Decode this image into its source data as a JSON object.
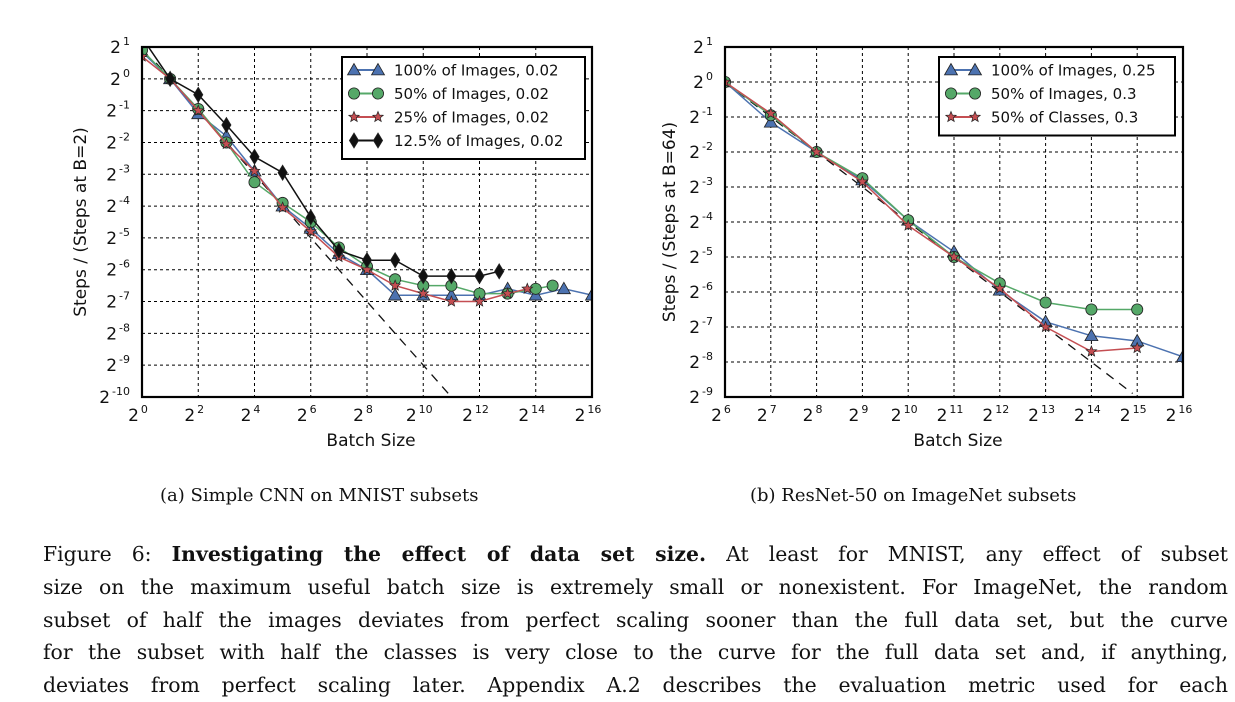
{
  "chart_data": [
    {
      "type": "line",
      "id": "a",
      "subcaption": "(a) Simple CNN on MNIST subsets",
      "xlabel": "Batch Size",
      "ylabel": "Steps / (Steps at B=2)",
      "x_scale": "log2",
      "y_scale": "log2",
      "xlim_exp": [
        0,
        16
      ],
      "ylim_exp": [
        -10,
        1
      ],
      "x_ticks_exp": [
        0,
        2,
        4,
        6,
        8,
        10,
        12,
        14,
        16
      ],
      "y_ticks_exp": [
        1,
        0,
        -1,
        -2,
        -3,
        -4,
        -5,
        -6,
        -7,
        -8,
        -9,
        -10
      ],
      "grid": true,
      "legend_position": "top-right",
      "series": [
        {
          "name": "100% of Images, 0.02",
          "color": "#4C72B0",
          "marker": "triangle",
          "x_exp": [
            0,
            1,
            2,
            3,
            4,
            5,
            6,
            7,
            8,
            9,
            10,
            11,
            12,
            13,
            14,
            15,
            16
          ],
          "y_exp": [
            0.85,
            0,
            -1.1,
            -1.8,
            -2.9,
            -4.0,
            -4.7,
            -5.5,
            -6.0,
            -6.8,
            -6.8,
            -6.8,
            -6.8,
            -6.6,
            -6.8,
            -6.6,
            -6.8
          ]
        },
        {
          "name": "50% of Images, 0.02",
          "color": "#55A868",
          "marker": "circle",
          "x_exp": [
            0,
            1,
            2,
            3,
            4,
            5,
            6,
            7,
            8,
            9,
            10,
            11,
            12,
            13,
            14,
            14.6
          ],
          "y_exp": [
            0.9,
            0,
            -0.95,
            -2.0,
            -3.25,
            -3.9,
            -4.5,
            -5.3,
            -5.9,
            -6.3,
            -6.5,
            -6.5,
            -6.75,
            -6.75,
            -6.6,
            -6.5
          ]
        },
        {
          "name": "25% of Images, 0.02",
          "color": "#C44E52",
          "marker": "star",
          "x_exp": [
            0,
            1,
            2,
            3,
            4,
            5,
            6,
            7,
            8,
            9,
            10,
            11,
            12,
            13,
            13.7
          ],
          "y_exp": [
            0.7,
            0,
            -1.0,
            -2.05,
            -2.9,
            -4.05,
            -4.8,
            -5.6,
            -6.0,
            -6.5,
            -6.75,
            -7.0,
            -7.0,
            -6.75,
            -6.6
          ]
        },
        {
          "name": "12.5% of Images, 0.02",
          "color": "#111111",
          "marker": "diamond",
          "x_exp": [
            0,
            1,
            2,
            3,
            4,
            5,
            6,
            7,
            8,
            9,
            10,
            11,
            12,
            12.7
          ],
          "y_exp": [
            1.3,
            0,
            -0.5,
            -1.45,
            -2.45,
            -2.95,
            -4.35,
            -5.4,
            -5.7,
            -5.7,
            -6.2,
            -6.2,
            -6.2,
            -6.05
          ]
        }
      ],
      "reference_line": {
        "style": "dashed",
        "color": "#111111",
        "x_exp": [
          0.5,
          11.1
        ],
        "y_exp": [
          0.5,
          -10.1
        ]
      }
    },
    {
      "type": "line",
      "id": "b",
      "subcaption": "(b) ResNet-50 on ImageNet subsets",
      "xlabel": "Batch Size",
      "ylabel": "Steps / (Steps at B=64)",
      "x_scale": "log2",
      "y_scale": "log2",
      "xlim_exp": [
        6,
        16
      ],
      "ylim_exp": [
        -9,
        1
      ],
      "x_ticks_exp": [
        6,
        7,
        8,
        9,
        10,
        11,
        12,
        13,
        14,
        15,
        16
      ],
      "y_ticks_exp": [
        1,
        0,
        -1,
        -2,
        -3,
        -4,
        -5,
        -6,
        -7,
        -8,
        -9
      ],
      "grid": true,
      "legend_position": "top-right",
      "series": [
        {
          "name": "100% of Images, 0.25",
          "color": "#4C72B0",
          "marker": "triangle",
          "x_exp": [
            6,
            7,
            8,
            9,
            10,
            11,
            12,
            13,
            14,
            15,
            16
          ],
          "y_exp": [
            0,
            -1.15,
            -2.0,
            -2.8,
            -3.95,
            -4.85,
            -5.95,
            -6.85,
            -7.25,
            -7.4,
            -7.85
          ]
        },
        {
          "name": "50% of Images, 0.3",
          "color": "#55A868",
          "marker": "circle",
          "x_exp": [
            6,
            7,
            8,
            9,
            10,
            11,
            12,
            13,
            14,
            15
          ],
          "y_exp": [
            0,
            -0.95,
            -2.0,
            -2.75,
            -3.95,
            -5.0,
            -5.75,
            -6.3,
            -6.5,
            -6.5
          ]
        },
        {
          "name": "50% of Classes, 0.3",
          "color": "#C44E52",
          "marker": "star",
          "x_exp": [
            6,
            7,
            8,
            9,
            10,
            11,
            12,
            13,
            14,
            15
          ],
          "y_exp": [
            0,
            -0.9,
            -2.0,
            -2.85,
            -4.1,
            -5.0,
            -5.9,
            -7.0,
            -7.7,
            -7.6
          ]
        }
      ],
      "reference_line": {
        "style": "dashed",
        "color": "#111111",
        "x_exp": [
          6,
          14.9
        ],
        "y_exp": [
          0,
          -8.9
        ]
      }
    }
  ],
  "caption": {
    "label": "Figure 6:",
    "title": "Investigating the effect of data set size.",
    "lines": [
      " At least for MNIST, any effect of subset",
      "size on the maximum useful batch size is extremely small or nonexistent. For ImageNet, the random",
      "subset of half the images deviates from perfect scaling sooner than the full data set, but the curve",
      "for the subset with half the classes is very close to the curve for the full data set and, if anything,",
      "deviates from perfect scaling later.  Appendix A.2 describes the evaluation metric used for each"
    ]
  }
}
